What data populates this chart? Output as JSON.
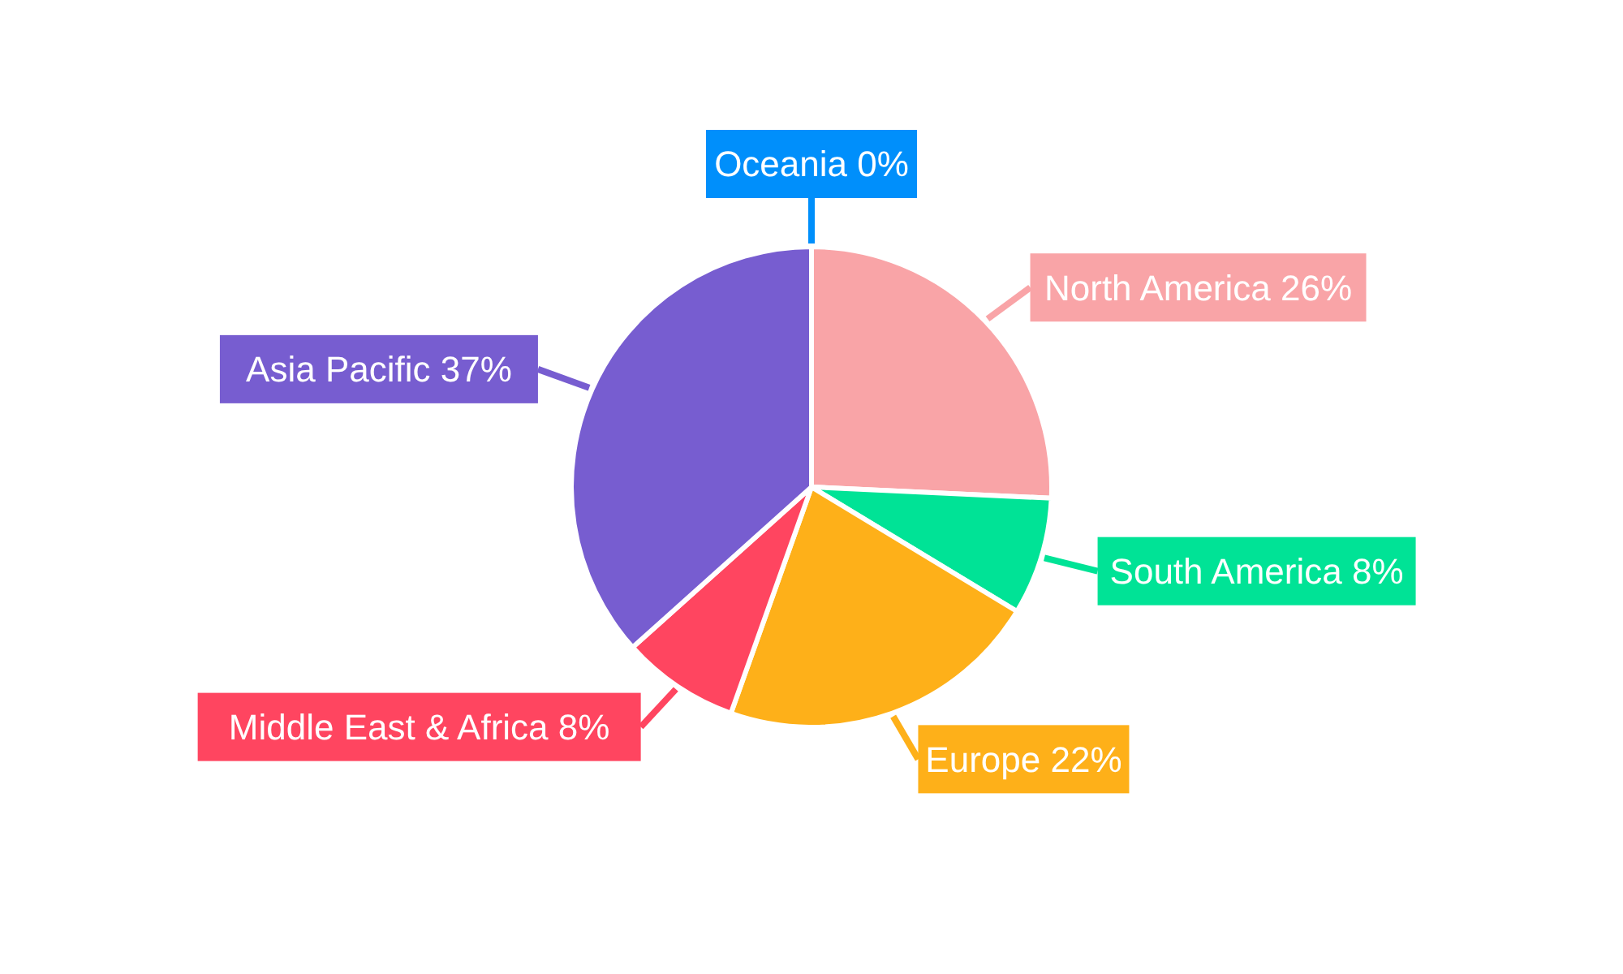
{
  "chart_data": {
    "type": "pie",
    "categories": [
      "North America",
      "South America",
      "Europe",
      "Middle East & Africa",
      "Asia Pacific",
      "Oceania"
    ],
    "values": [
      26,
      8,
      22,
      8,
      37,
      0
    ],
    "value_labels": [
      "26%",
      "8%",
      "22%",
      "8%",
      "37%",
      "0%"
    ],
    "colors": [
      "#f9a4a7",
      "#00e396",
      "#feb019",
      "#ff4560",
      "#775dd0",
      "#008ffb"
    ]
  }
}
